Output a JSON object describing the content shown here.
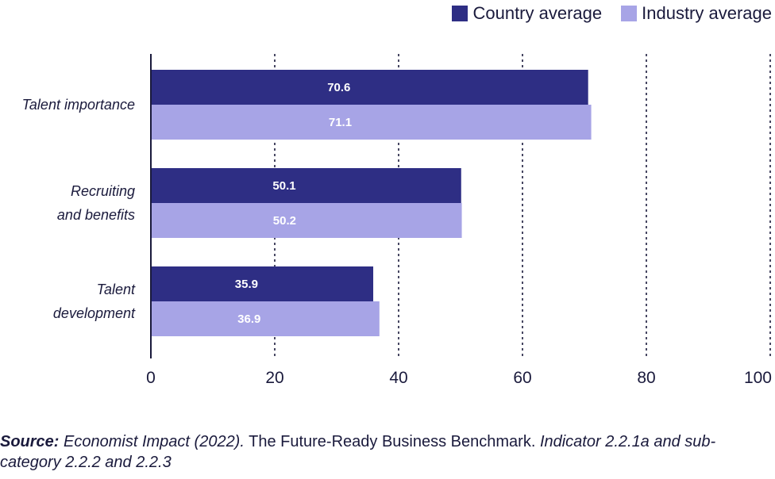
{
  "legend": {
    "country": "Country average",
    "industry": "Industry average"
  },
  "colors": {
    "country": "#2e2e84",
    "industry": "#a7a4e6",
    "axis": "#1a1a3c",
    "bar_text": "#ffffff"
  },
  "source": {
    "label": "Source:",
    "part1": "Economist Impact (2022).",
    "part2": " The Future-Ready Business Benchmark. ",
    "part3": "Indicator 2.2.1a and sub-category 2.2.2 and 2.2.3"
  },
  "chart_data": {
    "type": "bar",
    "orientation": "horizontal",
    "categories": [
      [
        "Talent importance"
      ],
      [
        "Recruiting",
        "and benefits"
      ],
      [
        "Talent",
        "development"
      ]
    ],
    "series": [
      {
        "name": "Country average",
        "values": [
          70.6,
          50.1,
          35.9
        ],
        "color_key": "country"
      },
      {
        "name": "Industry average",
        "values": [
          71.1,
          50.2,
          36.9
        ],
        "color_key": "industry"
      }
    ],
    "xlim": [
      0,
      100
    ],
    "xticks": [
      0,
      20,
      40,
      60,
      80,
      100
    ],
    "grid": "vertical dotted",
    "legend_position": "top-right"
  }
}
